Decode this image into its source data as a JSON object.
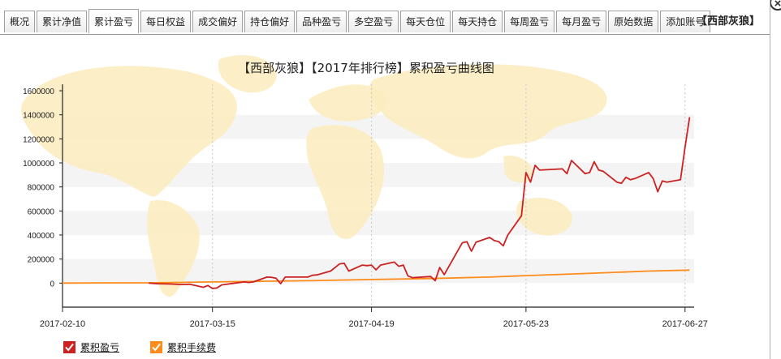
{
  "tabs": [
    {
      "label": "概况"
    },
    {
      "label": "累计净值"
    },
    {
      "label": "累计盈亏",
      "active": true
    },
    {
      "label": "每日权益"
    },
    {
      "label": "成交偏好"
    },
    {
      "label": "持仓偏好"
    },
    {
      "label": "品种盈亏"
    },
    {
      "label": "多空盈亏"
    },
    {
      "label": "每天仓位"
    },
    {
      "label": "每天持仓"
    },
    {
      "label": "每周盈亏"
    },
    {
      "label": "每月盈亏"
    },
    {
      "label": "原始数据"
    },
    {
      "label": "添加账号"
    }
  ],
  "account": "【西部灰狼】",
  "close_symbol": "×",
  "colors": {
    "series_pnl": "#cc2222",
    "series_fee": "#ff8c1a",
    "map": "#fbecbe",
    "band": "#f4f4f4"
  },
  "chart_data": {
    "type": "line",
    "title": "【西部灰狼】【2017年排行榜】累积盈亏曲线图",
    "xlabel": "",
    "ylabel": "",
    "x_range": [
      "2017-02-10",
      "2017-06-29"
    ],
    "x_ticks": [
      "2017-02-10",
      "2017-03-15",
      "2017-04-19",
      "2017-05-23",
      "2017-06-27"
    ],
    "ylim": [
      -200000,
      1600000
    ],
    "y_ticks": [
      0,
      200000,
      400000,
      600000,
      800000,
      1000000,
      1200000,
      1400000,
      1600000
    ],
    "grid": "vertical dotted at x ticks, alternating horizontal bands",
    "legend_position": "bottom-left",
    "series": [
      {
        "name": "累积盈亏",
        "color": "#cc2222",
        "points": [
          [
            "2017-03-01",
            0
          ],
          [
            "2017-03-03",
            -5000
          ],
          [
            "2017-03-06",
            -8000
          ],
          [
            "2017-03-08",
            -12000
          ],
          [
            "2017-03-10",
            -10000
          ],
          [
            "2017-03-13",
            -35000
          ],
          [
            "2017-03-14",
            -20000
          ],
          [
            "2017-03-15",
            -45000
          ],
          [
            "2017-03-16",
            -40000
          ],
          [
            "2017-03-17",
            -15000
          ],
          [
            "2017-03-20",
            0
          ],
          [
            "2017-03-21",
            5000
          ],
          [
            "2017-03-22",
            10000
          ],
          [
            "2017-03-23",
            5000
          ],
          [
            "2017-03-24",
            10000
          ],
          [
            "2017-03-27",
            50000
          ],
          [
            "2017-03-28",
            48000
          ],
          [
            "2017-03-29",
            40000
          ],
          [
            "2017-03-30",
            -5000
          ],
          [
            "2017-03-31",
            50000
          ],
          [
            "2017-04-05",
            50000
          ],
          [
            "2017-04-06",
            65000
          ],
          [
            "2017-04-07",
            68000
          ],
          [
            "2017-04-10",
            100000
          ],
          [
            "2017-04-11",
            130000
          ],
          [
            "2017-04-12",
            160000
          ],
          [
            "2017-04-13",
            165000
          ],
          [
            "2017-04-14",
            100000
          ],
          [
            "2017-04-17",
            150000
          ],
          [
            "2017-04-18",
            145000
          ],
          [
            "2017-04-19",
            150000
          ],
          [
            "2017-04-20",
            110000
          ],
          [
            "2017-04-21",
            150000
          ],
          [
            "2017-04-24",
            175000
          ],
          [
            "2017-04-25",
            140000
          ],
          [
            "2017-04-26",
            150000
          ],
          [
            "2017-04-27",
            60000
          ],
          [
            "2017-04-28",
            45000
          ],
          [
            "2017-05-02",
            55000
          ],
          [
            "2017-05-03",
            20000
          ],
          [
            "2017-05-04",
            130000
          ],
          [
            "2017-05-05",
            70000
          ],
          [
            "2017-05-08",
            270000
          ],
          [
            "2017-05-09",
            335000
          ],
          [
            "2017-05-10",
            345000
          ],
          [
            "2017-05-11",
            265000
          ],
          [
            "2017-05-12",
            340000
          ],
          [
            "2017-05-15",
            380000
          ],
          [
            "2017-05-16",
            355000
          ],
          [
            "2017-05-17",
            345000
          ],
          [
            "2017-05-18",
            310000
          ],
          [
            "2017-05-19",
            400000
          ],
          [
            "2017-05-22",
            560000
          ],
          [
            "2017-05-23",
            920000
          ],
          [
            "2017-05-24",
            840000
          ],
          [
            "2017-05-25",
            980000
          ],
          [
            "2017-05-26",
            940000
          ],
          [
            "2017-05-31",
            950000
          ],
          [
            "2017-06-01",
            910000
          ],
          [
            "2017-06-02",
            1020000
          ],
          [
            "2017-06-05",
            910000
          ],
          [
            "2017-06-06",
            920000
          ],
          [
            "2017-06-07",
            1010000
          ],
          [
            "2017-06-08",
            940000
          ],
          [
            "2017-06-09",
            930000
          ],
          [
            "2017-06-12",
            840000
          ],
          [
            "2017-06-13",
            830000
          ],
          [
            "2017-06-14",
            880000
          ],
          [
            "2017-06-15",
            860000
          ],
          [
            "2017-06-16",
            870000
          ],
          [
            "2017-06-19",
            920000
          ],
          [
            "2017-06-20",
            870000
          ],
          [
            "2017-06-21",
            760000
          ],
          [
            "2017-06-22",
            850000
          ],
          [
            "2017-06-23",
            840000
          ],
          [
            "2017-06-26",
            860000
          ],
          [
            "2017-06-27",
            1130000
          ],
          [
            "2017-06-28",
            1380000
          ]
        ]
      },
      {
        "name": "累积手续费",
        "color": "#ff8c1a",
        "points": [
          [
            "2017-02-10",
            0
          ],
          [
            "2017-03-01",
            2000
          ],
          [
            "2017-03-15",
            10000
          ],
          [
            "2017-04-05",
            20000
          ],
          [
            "2017-04-19",
            30000
          ],
          [
            "2017-05-02",
            38000
          ],
          [
            "2017-05-15",
            50000
          ],
          [
            "2017-05-23",
            62000
          ],
          [
            "2017-06-05",
            80000
          ],
          [
            "2017-06-19",
            100000
          ],
          [
            "2017-06-28",
            108000
          ]
        ]
      }
    ]
  }
}
